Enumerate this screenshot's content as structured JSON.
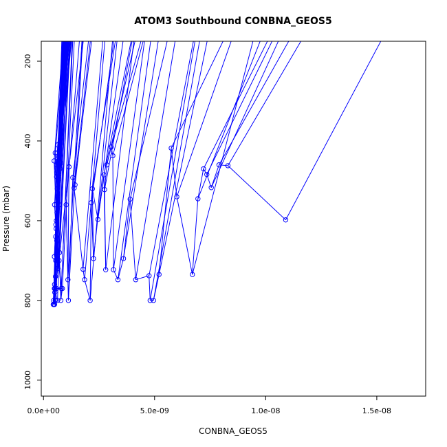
{
  "chart_data": {
    "type": "line",
    "title": "ATOM3 Southbound CONBNA_GEOS5",
    "xlabel": "CONBNA_GEOS5",
    "ylabel": "Pressure (mbar)",
    "xlim": [
      -1e-10,
      1.72e-08
    ],
    "ylim": [
      1040,
      150
    ],
    "y_reversed": true,
    "grid": false,
    "x_ticks": [
      {
        "value": 0,
        "label": "0.0e+00"
      },
      {
        "value": 5e-09,
        "label": "5.0e-09"
      },
      {
        "value": 1e-08,
        "label": "1.0e-08"
      },
      {
        "value": 1.5e-08,
        "label": "1.5e-08"
      }
    ],
    "y_ticks": [
      {
        "value": 200,
        "label": "200"
      },
      {
        "value": 400,
        "label": "400"
      },
      {
        "value": 600,
        "label": "600"
      },
      {
        "value": 800,
        "label": "800"
      },
      {
        "value": 1000,
        "label": "1000"
      }
    ],
    "series": [
      {
        "color": "#0000ff",
        "x": [
          5.2e-10,
          5.8e-10,
          4.8e-10,
          6.2e-10,
          5.5e-10,
          6.6e-10,
          5e-10,
          7e-10,
          5.3e-10,
          6e-10,
          4.6e-10,
          6.4e-10,
          5.7e-10,
          7.4e-10,
          5.1e-10,
          6.1e-10,
          4.9e-10,
          6.8e-10,
          5.4e-10,
          7.6e-10,
          5.6e-10,
          6.3e-10,
          4.7e-10,
          7.2e-10,
          5.9e-10,
          6.5e-10,
          5e-10,
          8e-10,
          5.5e-10,
          6.9e-10,
          4.4e-10,
          5.3e-10,
          5e-10,
          6.3e-10,
          4.9e-10,
          5.8e-10,
          8.5e-10,
          7.8e-10,
          5.9e-10,
          6e-10,
          6.2e-10,
          6.4e-10,
          6.6e-10,
          6.8e-10,
          7e-10,
          1.15e-09,
          1.1e-09,
          1.02e-09,
          1.12e-09,
          1.32e-09,
          1.42e-09,
          1.38e-09,
          1.78e-09,
          1.85e-09,
          2.1e-09,
          2.15e-09,
          2.25e-09,
          2.2e-09,
          2.45e-09,
          2.72e-09,
          2.8e-09,
          2.75e-09,
          2.85e-09,
          3.05e-09,
          3.12e-09,
          3.15e-09,
          3.35e-09,
          3.6e-09,
          3.9e-09,
          4.15e-09,
          4.75e-09,
          4.8e-09,
          4.95e-09,
          5.2e-09,
          5.75e-09,
          6e-09,
          6.7e-09,
          6.95e-09,
          7.2e-09,
          7.35e-09,
          7.55e-09,
          7.9e-09,
          8.3e-09,
          1.09e-08
        ],
        "y": [
          770,
          600,
          450,
          520,
          700,
          480,
          760,
          560,
          430,
          650,
          800,
          540,
          620,
          470,
          780,
          580,
          690,
          500,
          740,
          455,
          610,
          530,
          810,
          680,
          490,
          720,
          560,
          770,
          640,
          440,
          810,
          800,
          810,
          800,
          770,
          770,
          770,
          800,
          460,
          480,
          430,
          410,
          450,
          490,
          700,
          465,
          748,
          560,
          800,
          492,
          510,
          518,
          722,
          748,
          800,
          555,
          695,
          520,
          597,
          485,
          723,
          522,
          460,
          415,
          437,
          723,
          748,
          695,
          546,
          748,
          738,
          800,
          800,
          735,
          418,
          540,
          735,
          545,
          470,
          484,
          517,
          460,
          462,
          598
        ]
      }
    ]
  }
}
